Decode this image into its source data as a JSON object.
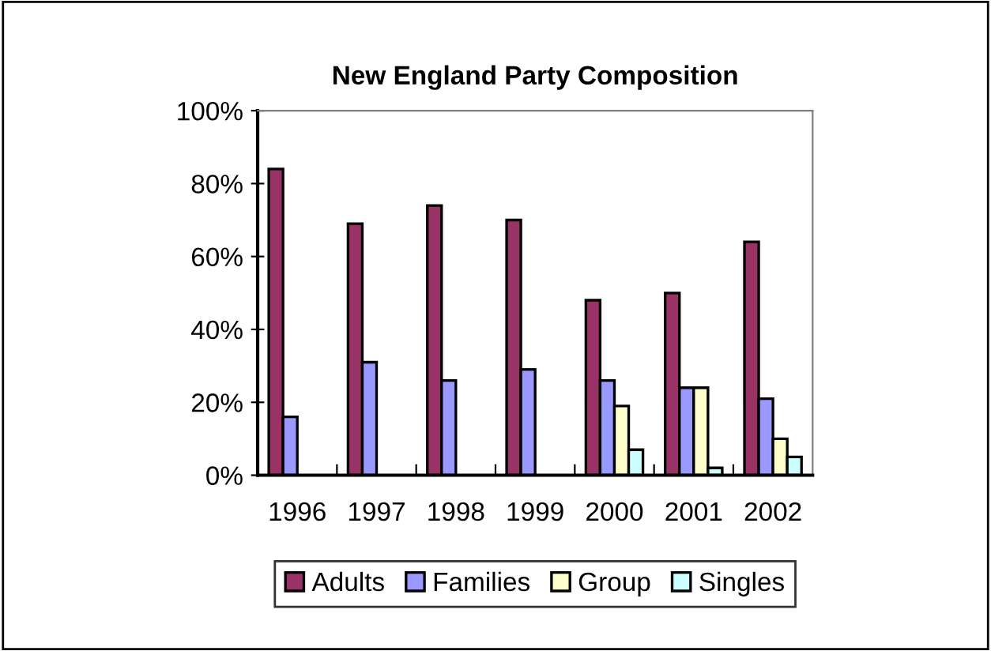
{
  "chart_data": {
    "type": "bar",
    "title": "New England Party Composition",
    "categories": [
      "1996",
      "1997",
      "1998",
      "1999",
      "2000",
      "2001",
      "2002"
    ],
    "series": [
      {
        "name": "Adults",
        "color": "#993366",
        "values": [
          84,
          69,
          74,
          70,
          48,
          50,
          64
        ]
      },
      {
        "name": "Families",
        "color": "#9999ff",
        "values": [
          16,
          31,
          26,
          29,
          26,
          24,
          21
        ]
      },
      {
        "name": "Group",
        "color": "#ffffcc",
        "values": [
          null,
          null,
          null,
          null,
          19,
          24,
          10
        ]
      },
      {
        "name": "Singles",
        "color": "#ccffff",
        "values": [
          null,
          null,
          null,
          null,
          7,
          2,
          5
        ]
      }
    ],
    "ylim": [
      0,
      100
    ],
    "yticks": [
      {
        "value": 0,
        "label": "0%"
      },
      {
        "value": 20,
        "label": "20%"
      },
      {
        "value": 40,
        "label": "40%"
      },
      {
        "value": 60,
        "label": "60%"
      },
      {
        "value": 80,
        "label": "80%"
      },
      {
        "value": 100,
        "label": "100%"
      }
    ],
    "grid": false,
    "legend": "bottom"
  }
}
